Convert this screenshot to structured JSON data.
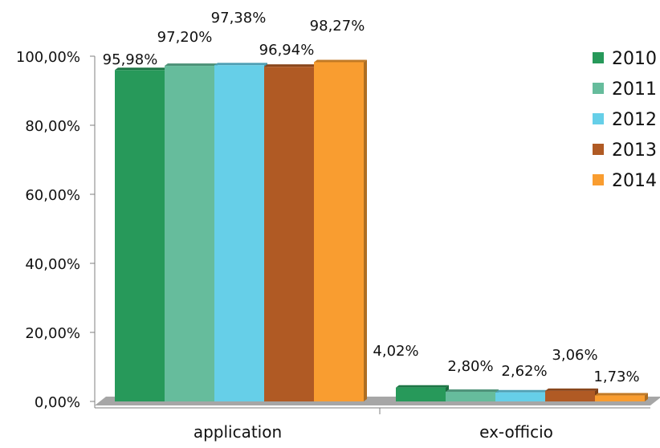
{
  "chart_data": {
    "type": "bar",
    "categories": [
      "application",
      "ex-officio"
    ],
    "series": [
      {
        "name": "2010",
        "color": "#27995a",
        "values": [
          95.98,
          4.02
        ],
        "labels": [
          "95,98%",
          "4,02%"
        ]
      },
      {
        "name": "2011",
        "color": "#66bc9c",
        "values": [
          97.2,
          2.8
        ],
        "labels": [
          "97,20%",
          "2,80%"
        ]
      },
      {
        "name": "2012",
        "color": "#66cfe8",
        "values": [
          97.38,
          2.62
        ],
        "labels": [
          "97,38%",
          "2,62%"
        ]
      },
      {
        "name": "2013",
        "color": "#b05a24",
        "values": [
          96.94,
          3.06
        ],
        "labels": [
          "96,94%",
          "3,06%"
        ]
      },
      {
        "name": "2014",
        "color": "#f99d30",
        "values": [
          98.27,
          1.73
        ],
        "labels": [
          "98,27%",
          "1,73%"
        ]
      }
    ],
    "ylim": [
      0,
      100
    ],
    "y_ticks": [
      {
        "value": 0,
        "label": "0,00%"
      },
      {
        "value": 20,
        "label": "20,00%"
      },
      {
        "value": 40,
        "label": "40,00%"
      },
      {
        "value": 60,
        "label": "60,00%"
      },
      {
        "value": 80,
        "label": "80,00%"
      },
      {
        "value": 100,
        "label": "100,00%"
      }
    ],
    "xlabel": "",
    "ylabel": "",
    "title": "",
    "legend_position": "right",
    "grid": false,
    "floor_color": "#a6a6a6"
  }
}
